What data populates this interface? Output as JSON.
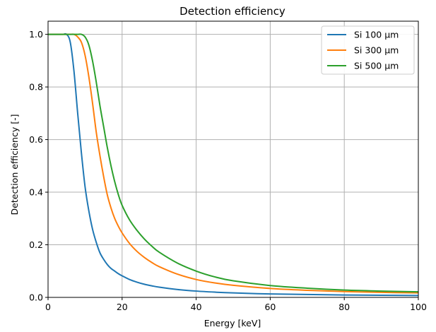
{
  "chart_data": {
    "type": "line",
    "title": "Detection efficiency",
    "xlabel": "Energy [keV]",
    "ylabel": "Detection efficiency [-]",
    "xlim": [
      0,
      100
    ],
    "ylim": [
      0,
      1.05
    ],
    "xticks": [
      0,
      20,
      40,
      60,
      80,
      100
    ],
    "yticks": [
      0.0,
      0.2,
      0.4,
      0.6,
      0.8,
      1.0
    ],
    "xtick_labels": [
      "0",
      "20",
      "40",
      "60",
      "80",
      "100"
    ],
    "ytick_labels": [
      "0.0",
      "0.2",
      "0.4",
      "0.6",
      "0.8",
      "1.0"
    ],
    "grid": true,
    "legend_position": "top-right",
    "x": [
      0,
      2,
      4,
      5,
      6,
      7,
      8,
      9,
      10,
      11,
      12,
      13,
      14,
      15,
      16,
      17,
      18,
      19,
      20,
      22,
      24,
      26,
      28,
      30,
      35,
      40,
      45,
      50,
      60,
      70,
      80,
      90,
      100
    ],
    "series": [
      {
        "name": "Si 100 μm",
        "color": "#1f77b4",
        "values": [
          1.0,
          1.0,
          1.0,
          1.0,
          0.97,
          0.86,
          0.7,
          0.55,
          0.42,
          0.33,
          0.26,
          0.21,
          0.17,
          0.145,
          0.125,
          0.11,
          0.1,
          0.09,
          0.082,
          0.068,
          0.058,
          0.05,
          0.044,
          0.039,
          0.03,
          0.024,
          0.02,
          0.017,
          0.013,
          0.011,
          0.009,
          0.008,
          0.007
        ]
      },
      {
        "name": "Si 300 μm",
        "color": "#ff7f0e",
        "values": [
          1.0,
          1.0,
          1.0,
          1.0,
          1.0,
          1.0,
          0.99,
          0.97,
          0.92,
          0.84,
          0.74,
          0.63,
          0.54,
          0.46,
          0.39,
          0.34,
          0.3,
          0.27,
          0.245,
          0.205,
          0.175,
          0.152,
          0.133,
          0.117,
          0.088,
          0.068,
          0.055,
          0.046,
          0.034,
          0.027,
          0.022,
          0.019,
          0.017
        ]
      },
      {
        "name": "Si 500 μm",
        "color": "#2ca02c",
        "values": [
          1.0,
          1.0,
          1.0,
          1.0,
          1.0,
          1.0,
          1.0,
          1.0,
          0.99,
          0.96,
          0.9,
          0.82,
          0.73,
          0.65,
          0.57,
          0.5,
          0.44,
          0.39,
          0.35,
          0.295,
          0.255,
          0.222,
          0.195,
          0.172,
          0.13,
          0.1,
          0.078,
          0.063,
          0.045,
          0.035,
          0.028,
          0.024,
          0.021
        ]
      }
    ]
  }
}
